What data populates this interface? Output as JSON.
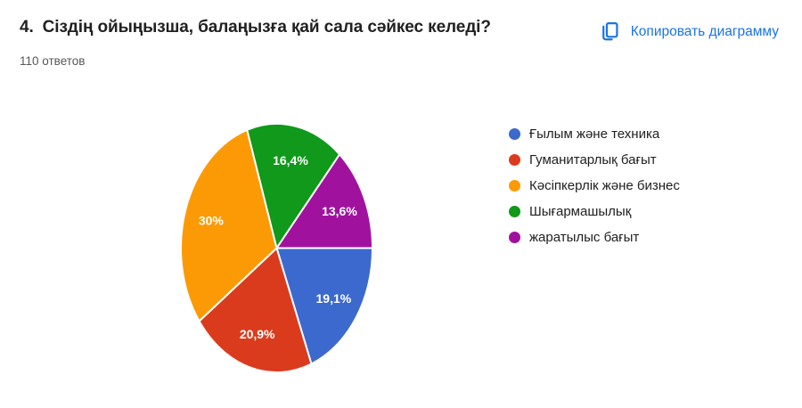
{
  "header": {
    "question_number": "4.",
    "question_title": "Сіздің ойыңызша, балаңызға қай сала сәйкес келеді?",
    "responses_count": "110 ответов",
    "copy_button_label": "Копировать диаграмму",
    "copy_button_color": "#1a73e8"
  },
  "chart_data": {
    "type": "pie",
    "title": "Сіздің ойыңызша, балаңызға қай сала сәйкес келеді?",
    "total_responses": 110,
    "start_angle_deg": 0,
    "direction": "clockwise",
    "legend_position": "right",
    "slice_label_color": "#ffffff",
    "separator_color": "#ffffff",
    "series": [
      {
        "label": "Ғылым және техника",
        "percent": 19.1,
        "display": "19,1%",
        "color": "#3c69cd"
      },
      {
        "label": "Гуманитарлық бағыт",
        "percent": 20.9,
        "display": "20,9%",
        "color": "#db3b1d"
      },
      {
        "label": "Кәсіпкерлік және бизнес",
        "percent": 30.0,
        "display": "30%",
        "color": "#fc9a06"
      },
      {
        "label": "Шығармашылық",
        "percent": 16.4,
        "display": "16,4%",
        "color": "#10991a"
      },
      {
        "label": "жаратылыс бағыт",
        "percent": 13.6,
        "display": "13,6%",
        "color": "#a0129e"
      }
    ]
  }
}
